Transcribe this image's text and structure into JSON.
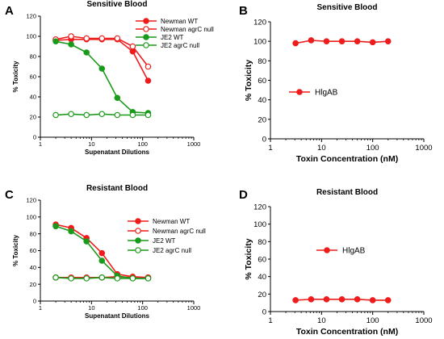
{
  "colors": {
    "red": "#ee1c1c",
    "green": "#1a9a1a",
    "axis": "#000000"
  },
  "chart_data": [
    {
      "panel": "A",
      "type": "line",
      "title": "Sensitive Blood",
      "xlabel": "Supenatant Dilutions",
      "ylabel": "% Toxicity",
      "x_scale": "log",
      "xlim": [
        1,
        1000
      ],
      "ylim": [
        0,
        120
      ],
      "xticks": [
        "1",
        "10",
        "100",
        "1000"
      ],
      "yticks": [
        "0",
        "20",
        "40",
        "60",
        "80",
        "100",
        "120"
      ],
      "legend_position": "top-right",
      "x": [
        2,
        4,
        8,
        16,
        32,
        64,
        128
      ],
      "series": [
        {
          "name": "Newman WT",
          "color": "#ee1c1c",
          "marker": "filled",
          "values": [
            96,
            97,
            97,
            97,
            97,
            85,
            56
          ]
        },
        {
          "name": "Newman agrC null",
          "color": "#ee1c1c",
          "marker": "open",
          "values": [
            97,
            100,
            98,
            98,
            98,
            90,
            70
          ]
        },
        {
          "name": "JE2 WT",
          "color": "#1a9a1a",
          "marker": "filled",
          "values": [
            95,
            92,
            84,
            68,
            39,
            25,
            24
          ]
        },
        {
          "name": "JE2 agrC null",
          "color": "#1a9a1a",
          "marker": "open",
          "values": [
            22,
            23,
            22,
            23,
            22,
            22,
            22
          ]
        }
      ]
    },
    {
      "panel": "B",
      "type": "line",
      "title": "Sensitive Blood",
      "xlabel": "Toxin Concentration (nM)",
      "ylabel": "% Toxicity",
      "x_scale": "log",
      "xlim": [
        1,
        1000
      ],
      "ylim": [
        0,
        120
      ],
      "xticks": [
        "1",
        "10",
        "100",
        "1000"
      ],
      "yticks": [
        "0",
        "20",
        "40",
        "60",
        "80",
        "100",
        "120"
      ],
      "legend_position": "middle-left",
      "x": [
        3.1,
        6.25,
        12.5,
        25,
        50,
        100,
        200
      ],
      "series": [
        {
          "name": "HlgAB",
          "color": "#ee1c1c",
          "marker": "filled",
          "values": [
            98,
            101,
            100,
            100,
            100,
            99,
            100
          ]
        }
      ]
    },
    {
      "panel": "C",
      "type": "line",
      "title": "Resistant Blood",
      "xlabel": "Supenatant Dilutions",
      "ylabel": "% Toxicity",
      "x_scale": "log",
      "xlim": [
        1,
        1000
      ],
      "ylim": [
        0,
        120
      ],
      "xticks": [
        "1",
        "10",
        "100",
        "1000"
      ],
      "yticks": [
        "0",
        "20",
        "40",
        "60",
        "80",
        "100",
        "120"
      ],
      "legend_position": "center-right",
      "x": [
        2,
        4,
        8,
        16,
        32,
        64,
        128
      ],
      "series": [
        {
          "name": "Newman WT",
          "color": "#ee1c1c",
          "marker": "filled",
          "values": [
            91,
            87,
            75,
            57,
            32,
            29,
            28
          ]
        },
        {
          "name": "Newman agrC null",
          "color": "#ee1c1c",
          "marker": "open",
          "values": [
            28,
            28,
            28,
            28,
            29,
            28,
            28
          ]
        },
        {
          "name": "JE2 WT",
          "color": "#1a9a1a",
          "marker": "filled",
          "values": [
            89,
            83,
            71,
            48,
            30,
            27,
            27
          ]
        },
        {
          "name": "JE2 agrC null",
          "color": "#1a9a1a",
          "marker": "open",
          "values": [
            28,
            27,
            27,
            28,
            27,
            27,
            27
          ]
        }
      ]
    },
    {
      "panel": "D",
      "type": "line",
      "title": "Resistant Blood",
      "xlabel": "Toxin Concentration (nM)",
      "ylabel": "% Toxicity",
      "x_scale": "log",
      "xlim": [
        1,
        1000
      ],
      "ylim": [
        0,
        120
      ],
      "xticks": [
        "1",
        "10",
        "100",
        "1000"
      ],
      "yticks": [
        "0",
        "20",
        "40",
        "60",
        "80",
        "100",
        "120"
      ],
      "legend_position": "upper-center",
      "x": [
        3.1,
        6.25,
        12.5,
        25,
        50,
        100,
        200
      ],
      "series": [
        {
          "name": "HlgAB",
          "color": "#ee1c1c",
          "marker": "filled",
          "values": [
            13,
            14,
            14,
            14,
            14,
            13,
            13
          ]
        }
      ]
    }
  ]
}
